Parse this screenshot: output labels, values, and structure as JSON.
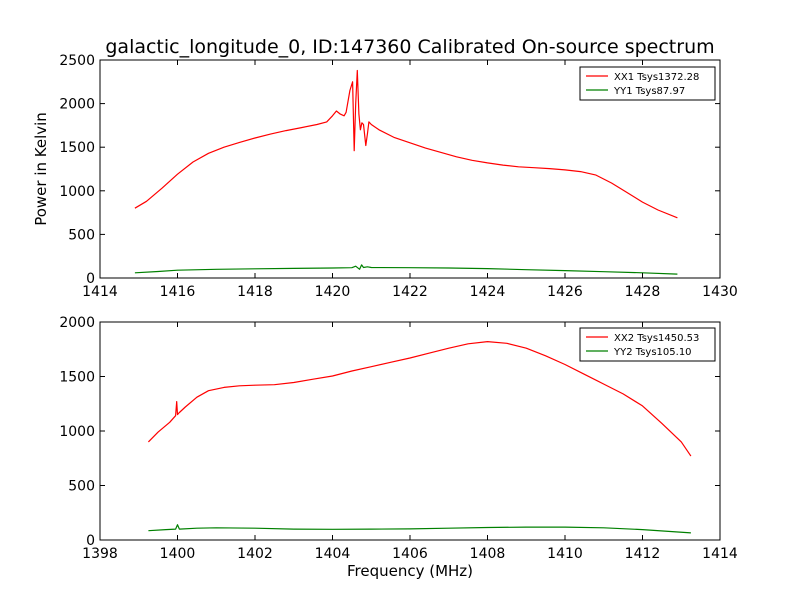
{
  "title": "galactic_longitude_0, ID:147360 Calibrated On-source spectrum",
  "chart_data": [
    {
      "type": "line",
      "ylabel": "Power in Kelvin",
      "xlabel": "",
      "xlim": [
        1414,
        1430
      ],
      "ylim": [
        0,
        2500
      ],
      "xticks": [
        "1414",
        "1416",
        "1418",
        "1420",
        "1422",
        "1424",
        "1426",
        "1428",
        "1430"
      ],
      "yticks": [
        "0",
        "500",
        "1000",
        "1500",
        "2000",
        "2500"
      ],
      "grid": false,
      "legend_position": "top-right",
      "series": [
        {
          "name": "XX1 Tsys1372.28",
          "color": "#ff0000",
          "x": [
            1414.9,
            1415.2,
            1415.6,
            1416.0,
            1416.4,
            1416.8,
            1417.2,
            1417.6,
            1418.0,
            1418.4,
            1418.8,
            1419.2,
            1419.6,
            1419.85,
            1420.0,
            1420.1,
            1420.2,
            1420.3,
            1420.35,
            1420.45,
            1420.52,
            1420.56,
            1420.6,
            1420.64,
            1420.68,
            1420.72,
            1420.76,
            1420.8,
            1420.86,
            1420.9,
            1420.94,
            1421.0,
            1421.2,
            1421.6,
            1422.0,
            1422.4,
            1422.8,
            1423.2,
            1423.6,
            1424.0,
            1424.4,
            1424.8,
            1425.2,
            1425.6,
            1426.0,
            1426.4,
            1426.8,
            1427.2,
            1427.6,
            1428.0,
            1428.4,
            1428.9
          ],
          "y": [
            800,
            880,
            1030,
            1190,
            1330,
            1430,
            1500,
            1555,
            1605,
            1650,
            1690,
            1725,
            1760,
            1790,
            1860,
            1915,
            1880,
            1860,
            1900,
            2150,
            2250,
            1460,
            2000,
            2380,
            1880,
            1700,
            1780,
            1760,
            1520,
            1650,
            1790,
            1760,
            1700,
            1610,
            1550,
            1490,
            1440,
            1390,
            1350,
            1320,
            1295,
            1275,
            1265,
            1255,
            1240,
            1220,
            1180,
            1090,
            980,
            870,
            780,
            690
          ]
        },
        {
          "name": "YY1 Tsys87.97",
          "color": "#008000",
          "x": [
            1414.9,
            1415.5,
            1416.0,
            1417.0,
            1418.0,
            1419.0,
            1420.0,
            1420.5,
            1420.6,
            1420.7,
            1420.75,
            1420.8,
            1420.9,
            1421.0,
            1422.0,
            1423.0,
            1424.0,
            1425.0,
            1426.0,
            1427.0,
            1428.0,
            1428.9
          ],
          "y": [
            60,
            75,
            90,
            100,
            105,
            110,
            115,
            118,
            135,
            100,
            150,
            120,
            128,
            120,
            118,
            115,
            108,
            95,
            85,
            72,
            60,
            45
          ]
        }
      ]
    },
    {
      "type": "line",
      "ylabel": "",
      "xlabel": "Frequency (MHz)",
      "xlim": [
        1398,
        1414
      ],
      "ylim": [
        0,
        2000
      ],
      "xticks": [
        "1398",
        "1400",
        "1402",
        "1404",
        "1406",
        "1408",
        "1410",
        "1412",
        "1414"
      ],
      "yticks": [
        "0",
        "500",
        "1000",
        "1500",
        "2000"
      ],
      "grid": false,
      "legend_position": "top-right",
      "series": [
        {
          "name": "XX2 Tsys1450.53",
          "color": "#ff0000",
          "x": [
            1399.25,
            1399.5,
            1399.8,
            1399.95,
            1399.98,
            1400.0,
            1400.02,
            1400.05,
            1400.2,
            1400.5,
            1400.8,
            1401.2,
            1401.6,
            1402.0,
            1402.5,
            1403.0,
            1403.5,
            1404.0,
            1404.5,
            1405.0,
            1405.5,
            1406.0,
            1406.5,
            1407.0,
            1407.5,
            1408.0,
            1408.5,
            1409.0,
            1409.5,
            1410.0,
            1410.5,
            1411.0,
            1411.5,
            1412.0,
            1412.5,
            1413.0,
            1413.25
          ],
          "y": [
            900,
            990,
            1080,
            1140,
            1270,
            1150,
            1160,
            1170,
            1220,
            1310,
            1370,
            1400,
            1415,
            1420,
            1425,
            1445,
            1475,
            1505,
            1550,
            1590,
            1630,
            1670,
            1715,
            1760,
            1800,
            1820,
            1805,
            1760,
            1690,
            1610,
            1520,
            1430,
            1340,
            1230,
            1070,
            900,
            770
          ]
        },
        {
          "name": "YY2 Tsys105.10",
          "color": "#008000",
          "x": [
            1399.25,
            1399.7,
            1399.95,
            1400.0,
            1400.05,
            1400.5,
            1401.0,
            1402.0,
            1403.0,
            1404.0,
            1405.0,
            1406.0,
            1407.0,
            1408.0,
            1409.0,
            1410.0,
            1411.0,
            1412.0,
            1413.25
          ],
          "y": [
            85,
            95,
            100,
            140,
            100,
            108,
            112,
            108,
            100,
            98,
            100,
            102,
            108,
            115,
            118,
            118,
            112,
            95,
            65
          ]
        }
      ]
    }
  ]
}
